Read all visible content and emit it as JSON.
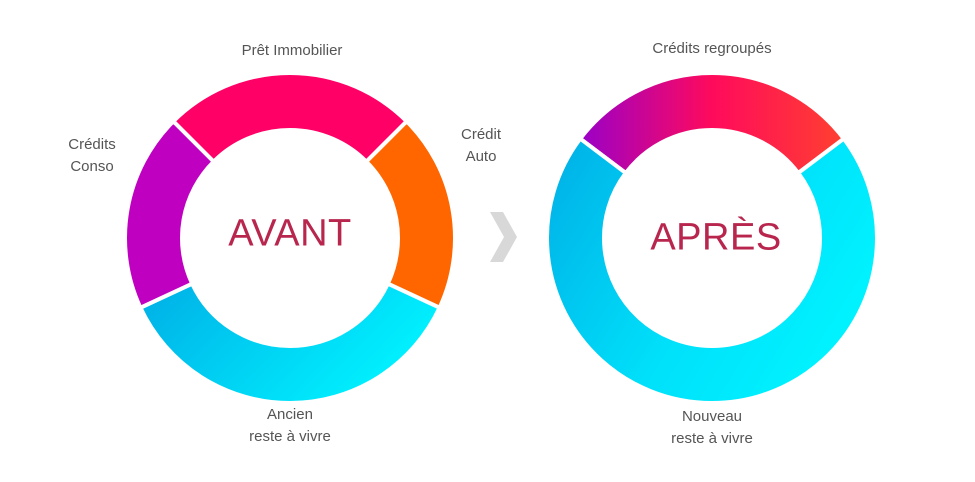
{
  "before": {
    "title": "AVANT",
    "labels": {
      "mortgage": "Prêt Immobilier",
      "consumer": "Crédits\nConso",
      "auto": "Crédit\nAuto",
      "remaining": "Ancien\nreste à vivre"
    }
  },
  "after": {
    "title": "APRÈS",
    "labels": {
      "grouped": "Crédits regroupés",
      "remaining": "Nouveau\nreste à vivre"
    }
  },
  "arrow_icon": "chevron-right-icon",
  "colors": {
    "title": "#b8264e",
    "mortgage": "#ff0066",
    "auto": "#ff6600",
    "consumer": "#c000c0",
    "remaining_start": "#00b0e8",
    "remaining_end": "#00f0ff",
    "grouped_start": "#9900cc",
    "grouped_end": "#ff3344",
    "arrow": "#d8d8d8",
    "label": "#555555"
  }
}
